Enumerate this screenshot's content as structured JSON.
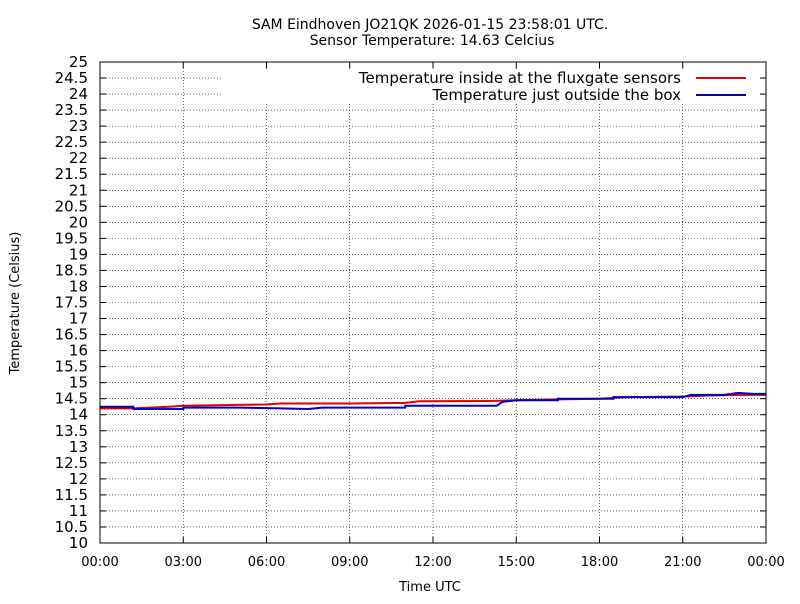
{
  "chart_data": {
    "type": "line",
    "title_lines": [
      "SAM Eindhoven JO21QK 2026-01-15 23:58:01 UTC.",
      "Sensor Temperature: 14.63 Celcius"
    ],
    "xlabel": "Time UTC",
    "ylabel": "Temperature (Celsius)",
    "xlim": [
      0,
      24
    ],
    "ylim": [
      10,
      25
    ],
    "x_unit": "hours UTC",
    "x_ticks": [
      {
        "value": 0,
        "label": "00:00"
      },
      {
        "value": 3,
        "label": "03:00"
      },
      {
        "value": 6,
        "label": "06:00"
      },
      {
        "value": 9,
        "label": "09:00"
      },
      {
        "value": 12,
        "label": "12:00"
      },
      {
        "value": 15,
        "label": "15:00"
      },
      {
        "value": 18,
        "label": "18:00"
      },
      {
        "value": 21,
        "label": "21:00"
      },
      {
        "value": 24,
        "label": "00:00"
      }
    ],
    "y_ticks": [
      "10",
      "10.5",
      "11",
      "11.5",
      "12",
      "12.5",
      "13",
      "13.5",
      "14",
      "14.5",
      "15",
      "15.5",
      "16",
      "16.5",
      "17",
      "17.5",
      "18",
      "18.5",
      "19",
      "19.5",
      "20",
      "20.5",
      "21",
      "21.5",
      "22",
      "22.5",
      "23",
      "23.5",
      "24",
      "24.5",
      "25"
    ],
    "grid": true,
    "legend_position": "top-right",
    "series": [
      {
        "name": "Temperature inside at the fluxgate sensors",
        "color": "#e00000",
        "points": [
          [
            0,
            14.2
          ],
          [
            1.2,
            14.2
          ],
          [
            2.5,
            14.25
          ],
          [
            3,
            14.28
          ],
          [
            6,
            14.32
          ],
          [
            6.5,
            14.35
          ],
          [
            9,
            14.35
          ],
          [
            11,
            14.37
          ],
          [
            11.5,
            14.42
          ],
          [
            14,
            14.43
          ],
          [
            15,
            14.45
          ],
          [
            16.5,
            14.48
          ],
          [
            18,
            14.5
          ],
          [
            19,
            14.55
          ],
          [
            21,
            14.57
          ],
          [
            22,
            14.6
          ],
          [
            23,
            14.62
          ],
          [
            24,
            14.62
          ]
        ]
      },
      {
        "name": "Temperature just outside the box",
        "color": "#0000c0",
        "points": [
          [
            0,
            14.25
          ],
          [
            1.2,
            14.25
          ],
          [
            1.2,
            14.18
          ],
          [
            3,
            14.18
          ],
          [
            3,
            14.22
          ],
          [
            5,
            14.22
          ],
          [
            6.5,
            14.2
          ],
          [
            7.5,
            14.18
          ],
          [
            8,
            14.22
          ],
          [
            9,
            14.22
          ],
          [
            11,
            14.22
          ],
          [
            11,
            14.28
          ],
          [
            13.2,
            14.28
          ],
          [
            13.5,
            14.28
          ],
          [
            14.3,
            14.28
          ],
          [
            14.5,
            14.4
          ],
          [
            15,
            14.45
          ],
          [
            16.5,
            14.45
          ],
          [
            16.5,
            14.5
          ],
          [
            18.5,
            14.5
          ],
          [
            18.5,
            14.55
          ],
          [
            21,
            14.55
          ],
          [
            21.3,
            14.62
          ],
          [
            22.5,
            14.62
          ],
          [
            23,
            14.68
          ],
          [
            23.5,
            14.65
          ],
          [
            24,
            14.65
          ]
        ]
      }
    ]
  }
}
